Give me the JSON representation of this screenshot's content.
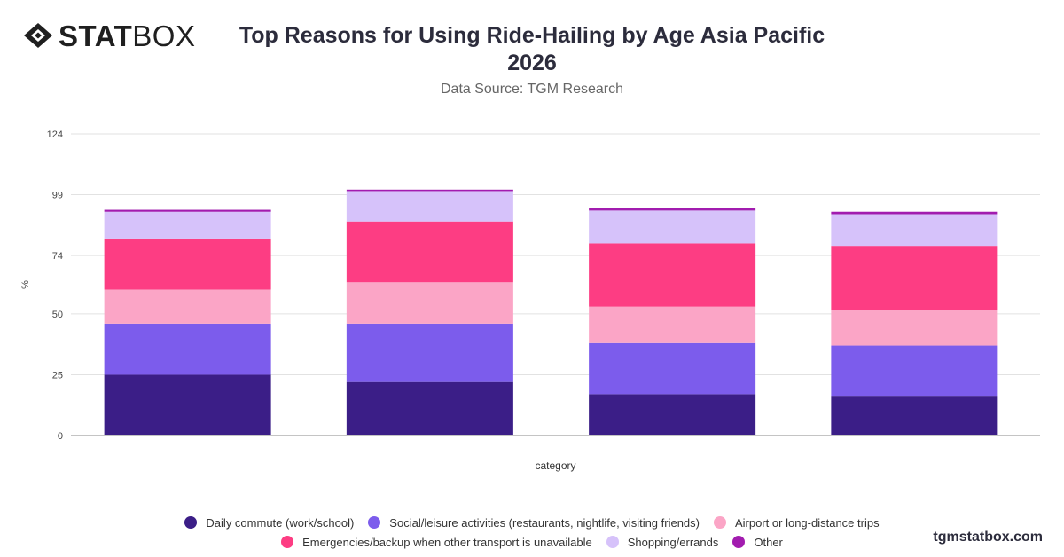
{
  "brand": {
    "logo_bold": "STAT",
    "logo_light": "BOX",
    "watermark": "tgmstatbox.com"
  },
  "header": {
    "title_line1": "Top Reasons for Using Ride-Hailing by Age Asia Pacific",
    "title_line2": "2026",
    "subtitle": "Data Source: TGM Research"
  },
  "chart_data": {
    "type": "bar",
    "stacked": true,
    "title": "Top Reasons for Using Ride-Hailing by Age Asia Pacific 2026",
    "subtitle": "Data Source: TGM Research",
    "xlabel": "category",
    "ylabel": "%",
    "ylim": [
      0,
      124
    ],
    "yticks": [
      0,
      25,
      50,
      74,
      99,
      124
    ],
    "grid": true,
    "legend_position": "bottom",
    "categories": [
      "",
      "",
      "",
      ""
    ],
    "series": [
      {
        "name": "Daily commute (work/school)",
        "color": "#3b1e87",
        "values": [
          25,
          22,
          17,
          16
        ]
      },
      {
        "name": "Social/leisure activities (restaurants, nightlife, visiting friends)",
        "color": "#7c5cec",
        "values": [
          21,
          24,
          21,
          21
        ]
      },
      {
        "name": "Airport or long-distance trips",
        "color": "#fba5c6",
        "values": [
          14,
          17,
          15,
          14.5
        ]
      },
      {
        "name": "Emergencies/backup when other transport is unavailable",
        "color": "#fd3d83",
        "values": [
          21,
          25,
          26,
          26.5
        ]
      },
      {
        "name": "Shopping/errands",
        "color": "#d6c2fa",
        "values": [
          11,
          12.5,
          13.5,
          13
        ]
      },
      {
        "name": "Other",
        "color": "#a21caf",
        "values": [
          0.8,
          0.6,
          1.2,
          1.0
        ]
      }
    ]
  }
}
